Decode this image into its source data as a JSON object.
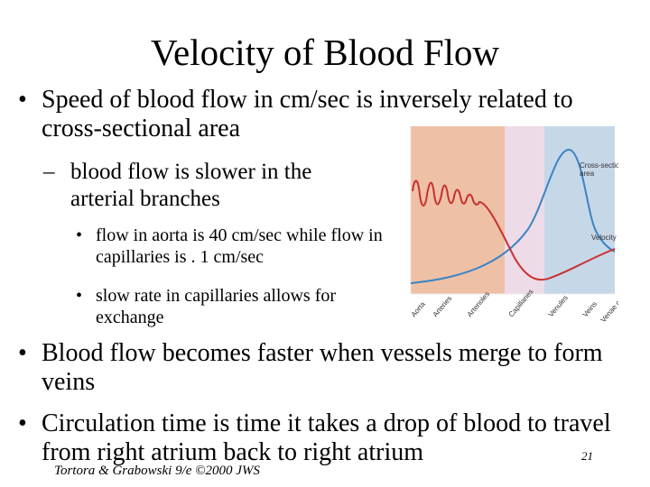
{
  "slide": {
    "title": "Velocity of Blood Flow",
    "bullets": [
      {
        "marker": "•",
        "text": "Speed of blood flow in cm/sec is inversely related to cross-sectional area"
      },
      {
        "marker": "–",
        "text": "blood flow is slower in the arterial branches"
      },
      {
        "marker": "•",
        "text": "flow in aorta is 40 cm/sec while flow in capillaries is . 1 cm/sec"
      },
      {
        "marker": "•",
        "text": "slow rate in capillaries allows for exchange"
      },
      {
        "marker": "•",
        "text": "Blood flow becomes faster when vessels merge to form veins"
      },
      {
        "marker": "•",
        "text": "Circulation time is time it takes a drop of blood to travel from right atrium back to right atrium"
      }
    ],
    "footer_credit": "Tortora & Grabowski 9/e ©2000 JWS",
    "page_number": "21"
  },
  "figure": {
    "curve_labels": {
      "cross_section": [
        "Cross-sectional",
        "area"
      ],
      "velocity": "Velocity"
    },
    "vessel_labels": [
      "Aorta",
      "Arteries",
      "Arterioles",
      "Capillaries",
      "Venules",
      "Veins",
      "Venae cavae"
    ],
    "colors": {
      "arterial_band": "#eec0a6",
      "capillary_band": "#eddbe7",
      "venous_band": "#c6d7e8",
      "velocity_curve": "#c8302e",
      "area_curve": "#3b84c4"
    }
  }
}
